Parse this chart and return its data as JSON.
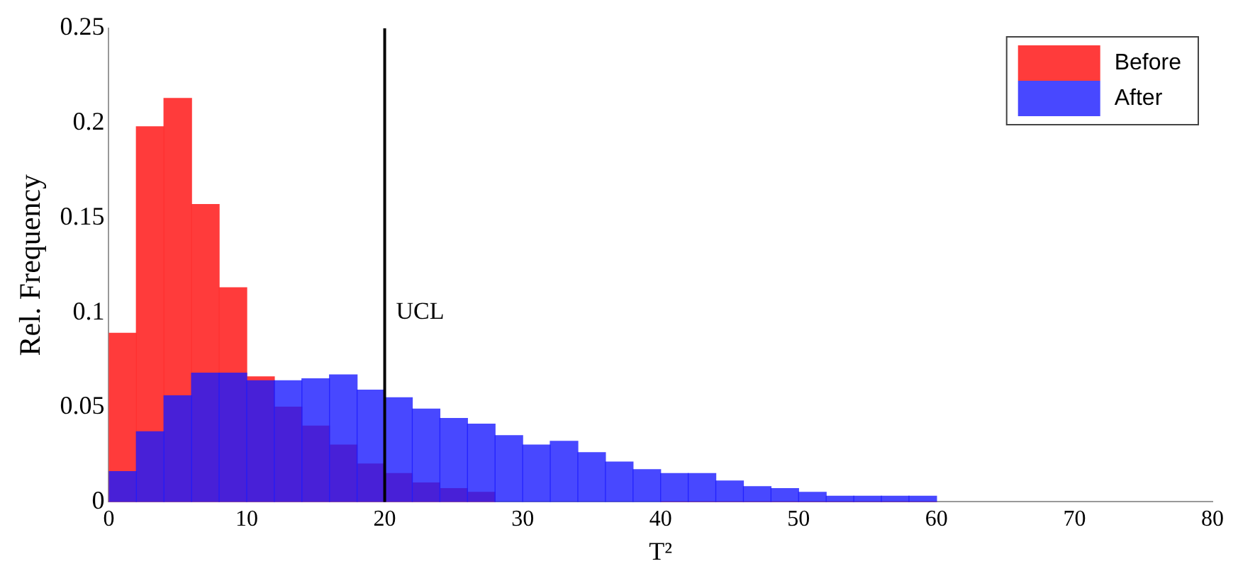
{
  "chart_data": {
    "type": "histogram",
    "xlabel": "T²",
    "ylabel": "Rel. Frequency",
    "bins": [
      0,
      2,
      4,
      6,
      8,
      10,
      12,
      14,
      16,
      18,
      20,
      22,
      24,
      26,
      28,
      30,
      32,
      34,
      36,
      38,
      40,
      42,
      44,
      46,
      48,
      50,
      52,
      54,
      56,
      58,
      60
    ],
    "series": [
      {
        "name": "Before",
        "color": "#ff3030",
        "values": [
          0.089,
          0.198,
          0.213,
          0.157,
          0.113,
          0.066,
          0.05,
          0.04,
          0.03,
          0.02,
          0.015,
          0.01,
          0.007,
          0.005,
          null,
          null,
          null,
          null,
          null,
          null,
          0,
          0,
          0,
          0,
          0,
          0,
          0,
          0,
          0,
          0
        ]
      },
      {
        "name": "After",
        "color": "#1a1aff",
        "values": [
          0.016,
          0.037,
          0.056,
          0.068,
          0.068,
          0.064,
          0.064,
          0.065,
          0.067,
          0.059,
          0.055,
          0.049,
          0.044,
          0.041,
          0.035,
          0.03,
          0.032,
          0.026,
          0.021,
          0.017,
          0.015,
          0.015,
          0.011,
          0.008,
          0.007,
          0.005,
          0.003,
          0.003,
          0.003,
          0.003
        ]
      }
    ],
    "xlim": [
      0,
      80
    ],
    "xticks": [
      0,
      10,
      20,
      30,
      40,
      50,
      60,
      70,
      80
    ],
    "ylim": [
      0,
      0.25
    ],
    "yticks": [
      0,
      0.05,
      0.1,
      0.15,
      0.2,
      0.25
    ],
    "ref_lines": [
      {
        "axis": "x",
        "value": 20,
        "label": "UCL",
        "color": "#000000"
      }
    ],
    "grid": false,
    "legend": "top right"
  }
}
